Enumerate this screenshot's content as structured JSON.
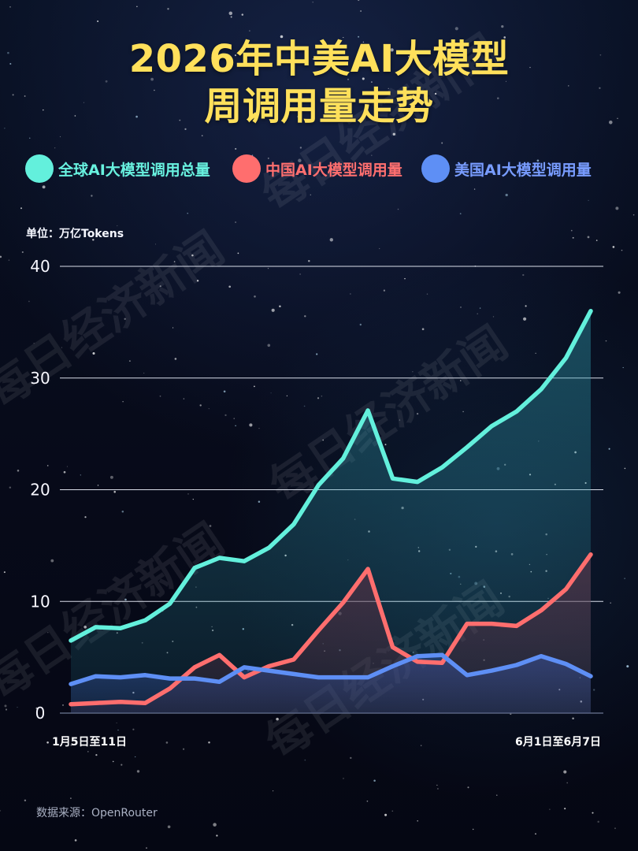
{
  "title": {
    "line1": "2026年中美AI大模型",
    "line2": "周调用量走势"
  },
  "legend": {
    "global": "全球AI大模型调用总量",
    "china": "中国AI大模型调用量",
    "us": "美国AI大模型调用量"
  },
  "unit": "单位：万亿Tokens",
  "source": "数据来源：OpenRouter",
  "watermark": "每日经济新闻",
  "colors": {
    "background": "#080b1c",
    "title": "#ffe05b",
    "global": "#63f0dc",
    "china": "#ff6e6e",
    "us": "#5e8ff5",
    "grid": "#f0f4ff"
  },
  "chart_data": {
    "type": "line",
    "unit": "万亿Tokens",
    "ylim": [
      0,
      40
    ],
    "yticks": [
      0,
      10,
      20,
      30,
      40
    ],
    "grid": true,
    "x_labels": {
      "start": "1月5日至11日",
      "end": "6月1日至6月7日"
    },
    "series": [
      {
        "name": "全球AI大模型调用总量",
        "color": "#63f0dc",
        "values": [
          6.5,
          7.7,
          7.6,
          8.3,
          9.8,
          13.0,
          13.9,
          13.6,
          14.8,
          16.9,
          20.4,
          22.8,
          27.1,
          21.0,
          20.7,
          22.0,
          23.8,
          25.7,
          27.0,
          29.0,
          31.8,
          36.0
        ]
      },
      {
        "name": "中国AI大模型调用量",
        "color": "#ff6e6e",
        "values": [
          0.8,
          0.9,
          1.0,
          0.9,
          2.2,
          4.1,
          5.2,
          3.2,
          4.2,
          4.8,
          7.4,
          9.9,
          12.9,
          5.9,
          4.6,
          4.5,
          8.0,
          8.0,
          7.8,
          9.2,
          11.1,
          14.2
        ]
      },
      {
        "name": "美国AI大模型调用量",
        "color": "#5e8ff5",
        "values": [
          2.6,
          3.3,
          3.2,
          3.4,
          3.1,
          3.1,
          2.8,
          4.1,
          3.8,
          3.5,
          3.2,
          3.2,
          3.2,
          4.2,
          5.1,
          5.2,
          3.4,
          3.8,
          4.3,
          5.1,
          4.4,
          3.3
        ]
      }
    ]
  }
}
